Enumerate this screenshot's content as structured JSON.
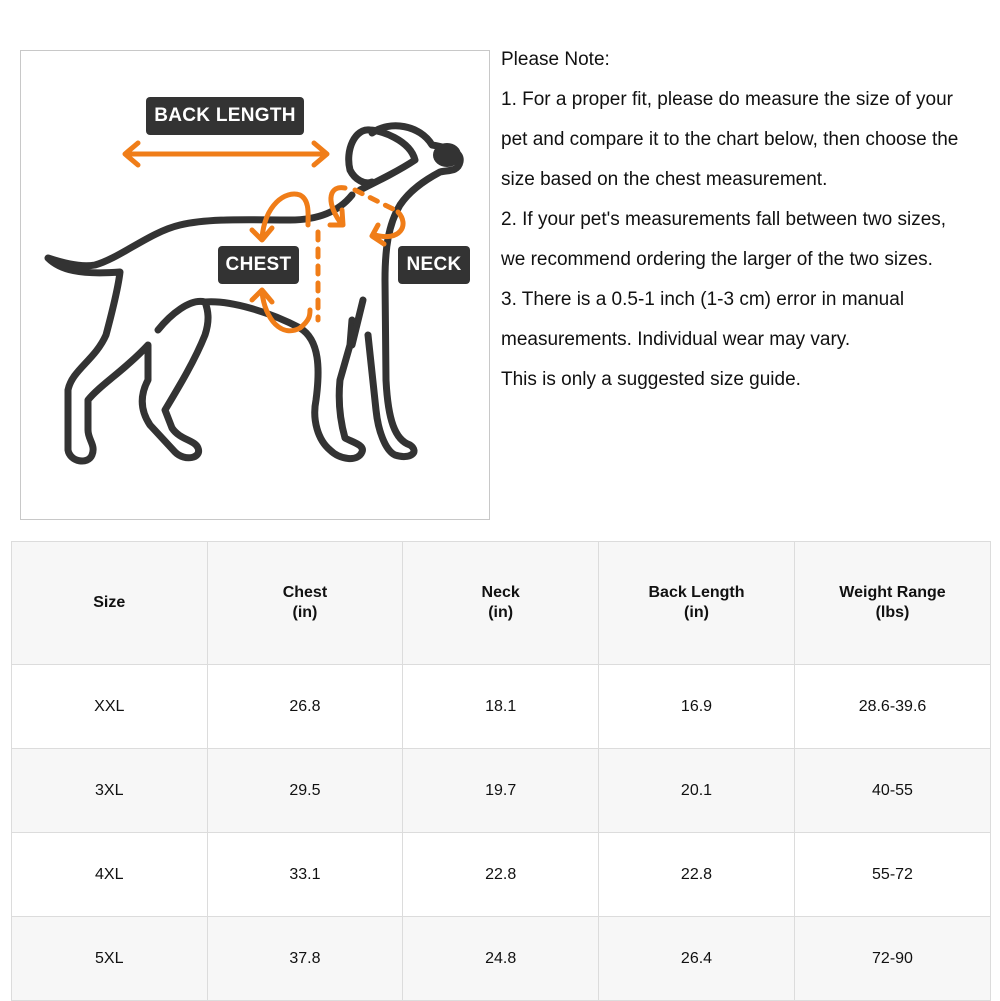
{
  "diagram": {
    "labels": {
      "back_length": "BACK LENGTH",
      "chest": "CHEST",
      "neck": "NECK"
    },
    "colors": {
      "arrow": "#f07d18",
      "outline": "#333333"
    }
  },
  "notes": {
    "heading": "Please Note:",
    "lines": [
      "1. For a proper fit, please do measure the size of your",
      "pet and compare it to the chart below, then choose the",
      "size based on the chest measurement.",
      "2. If your pet's measurements fall between two sizes,",
      "we recommend ordering the larger of the two sizes.",
      "3. There is a 0.5-1 inch (1-3 cm) error in manual",
      "measurements. Individual wear may vary.",
      "This is only a suggested size guide."
    ]
  },
  "table": {
    "headers": [
      {
        "line1": "Size",
        "line2": ""
      },
      {
        "line1": "Chest",
        "line2": "(in)"
      },
      {
        "line1": "Neck",
        "line2": "(in)"
      },
      {
        "line1": "Back Length",
        "line2": "(in)"
      },
      {
        "line1": "Weight Range",
        "line2": "(lbs)"
      }
    ],
    "rows": [
      [
        "XXL",
        "26.8",
        "18.1",
        "16.9",
        "28.6-39.6"
      ],
      [
        "3XL",
        "29.5",
        "19.7",
        "20.1",
        "40-55"
      ],
      [
        "4XL",
        "33.1",
        "22.8",
        "22.8",
        "55-72"
      ],
      [
        "5XL",
        "37.8",
        "24.8",
        "26.4",
        "72-90"
      ]
    ]
  }
}
